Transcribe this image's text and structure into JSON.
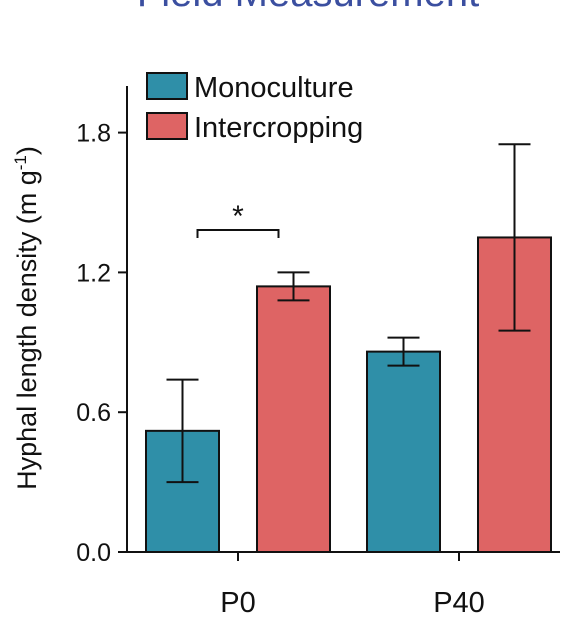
{
  "chart_data": {
    "type": "bar",
    "title": "Field  Measurement",
    "ylabel": "Hyphal length density (m g-1)",
    "ylabel_main": "Hyphal length density (m g",
    "ylabel_sup": "-1",
    "ylabel_close": ")",
    "xlabel": "",
    "ylim": [
      0,
      2.0
    ],
    "yticks": [
      0.0,
      0.6,
      1.2,
      1.8
    ],
    "ytick_labels": [
      "0.0",
      "0.6",
      "1.2",
      "1.8"
    ],
    "categories": [
      "P0",
      "P40"
    ],
    "series": [
      {
        "name": "Monoculture",
        "color": "#2f8fa8",
        "values": [
          0.52,
          0.86
        ],
        "errors": [
          0.22,
          0.06
        ]
      },
      {
        "name": "Intercropping",
        "color": "#de6464",
        "values": [
          1.14,
          1.35
        ],
        "errors": [
          0.06,
          0.4
        ]
      }
    ],
    "annotations": [
      {
        "text": "*",
        "category": 0
      }
    ],
    "legend_position": "top-left",
    "grid": false
  }
}
